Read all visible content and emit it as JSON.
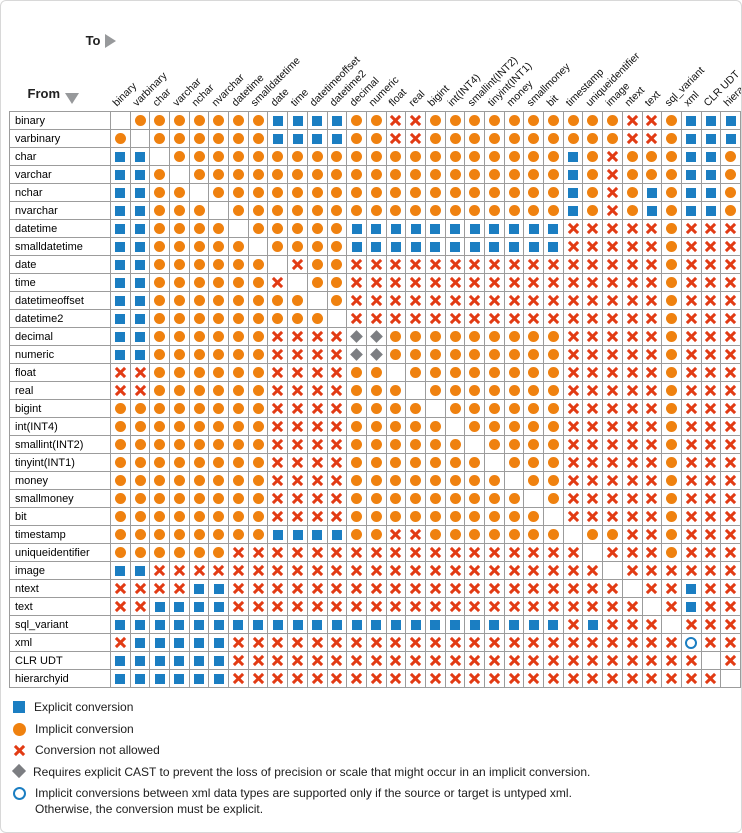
{
  "axes": {
    "from_label": "From",
    "to_label": "To"
  },
  "symbol_names": {
    "E": "explicit-square-icon",
    "I": "implicit-circle-icon",
    "X": "not-allowed-x-icon",
    "D": "cast-diamond-icon",
    "O": "untyped-xml-circle-icon"
  },
  "colors": {
    "explicit_blue": "#1b7ec2",
    "implicit_orange": "#ef810f",
    "not_allowed_red": "#e23b14",
    "diamond_gray": "#7c7e82",
    "grid_line": "#9c9c9c"
  },
  "legend": {
    "items": [
      {
        "symbol": "explicit",
        "text": "Explicit conversion"
      },
      {
        "symbol": "implicit",
        "text": "Implicit conversion"
      },
      {
        "symbol": "not-allowed",
        "text": "Conversion not allowed"
      },
      {
        "symbol": "cast-diamond",
        "text": "Requires explicit CAST to prevent the loss of precision or scale that might occur in an implicit conversion."
      },
      {
        "symbol": "untyped-xml",
        "text": "Implicit conversions between xml data types are supported only if the source or target is untyped xml.",
        "text2": "Otherwise, the conversion must be explicit."
      }
    ]
  },
  "chart_data": {
    "type": "table",
    "row_axis_label": "From",
    "col_axis_label": "To",
    "categories": [
      "binary",
      "varbinary",
      "char",
      "varchar",
      "nchar",
      "nvarchar",
      "datetime",
      "smalldatetime",
      "date",
      "time",
      "datetimeoffset",
      "datetime2",
      "decimal",
      "numeric",
      "float",
      "real",
      "bigint",
      "int(INT4)",
      "smallint(INT2)",
      "tinyint(INT1)",
      "money",
      "smallmoney",
      "bit",
      "timestamp",
      "uniqueidentifier",
      "image",
      "ntext",
      "text",
      "sql_variant",
      "xml",
      "CLR UDT",
      "hierarchyid"
    ],
    "cell_codes": {
      "E": "Explicit conversion",
      "I": "Implicit conversion",
      "X": "Conversion not allowed",
      "D": "Requires explicit CAST to prevent loss of precision or scale",
      "O": "Implicit only if source or target is untyped xml",
      ".": "none (same data type)"
    },
    "matrix": [
      ".IIIIIIIEEEEIIXXIIIIIIIIIIXXIEEE",
      "I.IIIIIIEEEEIIXXIIIIIIIIIIXXIEEE",
      "EE.IIIIIIIIIIIIIIIIIIIIEIXIIIEEI",
      "EEI.IIIIIIIIIIIIIIIIIIIEIXIIIEEI",
      "EEII.IIIIIIIIIIIIIIIIIIEIXIEIEEI",
      "EEIII.IIIIIIIIIIIIIIIIIEIXIEIEEI",
      "EEIIII.IIIIIEEEEEEEEEEEXXXXXIXXX",
      "EEIIIII.IIIIEEEEEEEEEEEXXXXXIXXX",
      "EEIIIIII.XIIXXXXXXXXXXXXXXXXIXXX",
      "EEIIIIIIX.IIXXXXXXXXXXXXXXXXIXXX",
      "EEIIIIIIII.IXXXXXXXXXXXXXXXXIXXX",
      "EEIIIIIIIII.XXXXXXXXXXXXXXXXIXXX",
      "EEIIIIIIXXXXDDIIIIIIIIIXXXXXIXXX",
      "EEIIIIIIXXXXDDIIIIIIIIIXXXXXIXXX",
      "XXIIIIIIXXXXII.IIIIIIIIXXXXXIXXX",
      "XXIIIIIIXXXXIII.IIIIIIIXXXXXIXXX",
      "IIIIIIIIXXXXIIII.IIIIIIXXXXXIXXX",
      "IIIIIIIIXXXXIIIII.IIIIIXXXXXIXXX",
      "IIIIIIIIXXXXIIIIII.IIIIXXXXXIXXX",
      "IIIIIIIIXXXXIIIIIII.IIIXXXXXIXXX",
      "IIIIIIIIXXXXIIIIIIII.IIXXXXXIXXX",
      "IIIIIIIIXXXXIIIIIIIII.IXXXXXIXXX",
      "IIIIIIIIXXXXIIIIIIIIII.XXXXXIXXX",
      "IIIIIIIIEEEEIIXXIIIIIII.IIXXIXXX",
      "IIIIIIXXXXXXXXXXXXXXXXXX.XXXIXXX",
      "EEXXXXXXXXXXXXXXXXXXXXXXX.XXXXXX",
      "XXXXEEXXXXXXXXXXXXXXXXXXXX.XXEXX",
      "XXEEEEXXXXXXXXXXXXXXXXXXXXX.XEXX",
      "EEEEEEEEEEEEEEEEEEEEEEEXEXXX.XXX",
      "XEEEEEXXXXXXXXXXXXXXXXXXXXXXXOXX",
      "EEEEEEXXXXXXXXXXXXXXXXXXXXXXXX.X",
      "EEEEEEXXXXXXXXXXXXXXXXXXXXXXXXX."
    ]
  }
}
